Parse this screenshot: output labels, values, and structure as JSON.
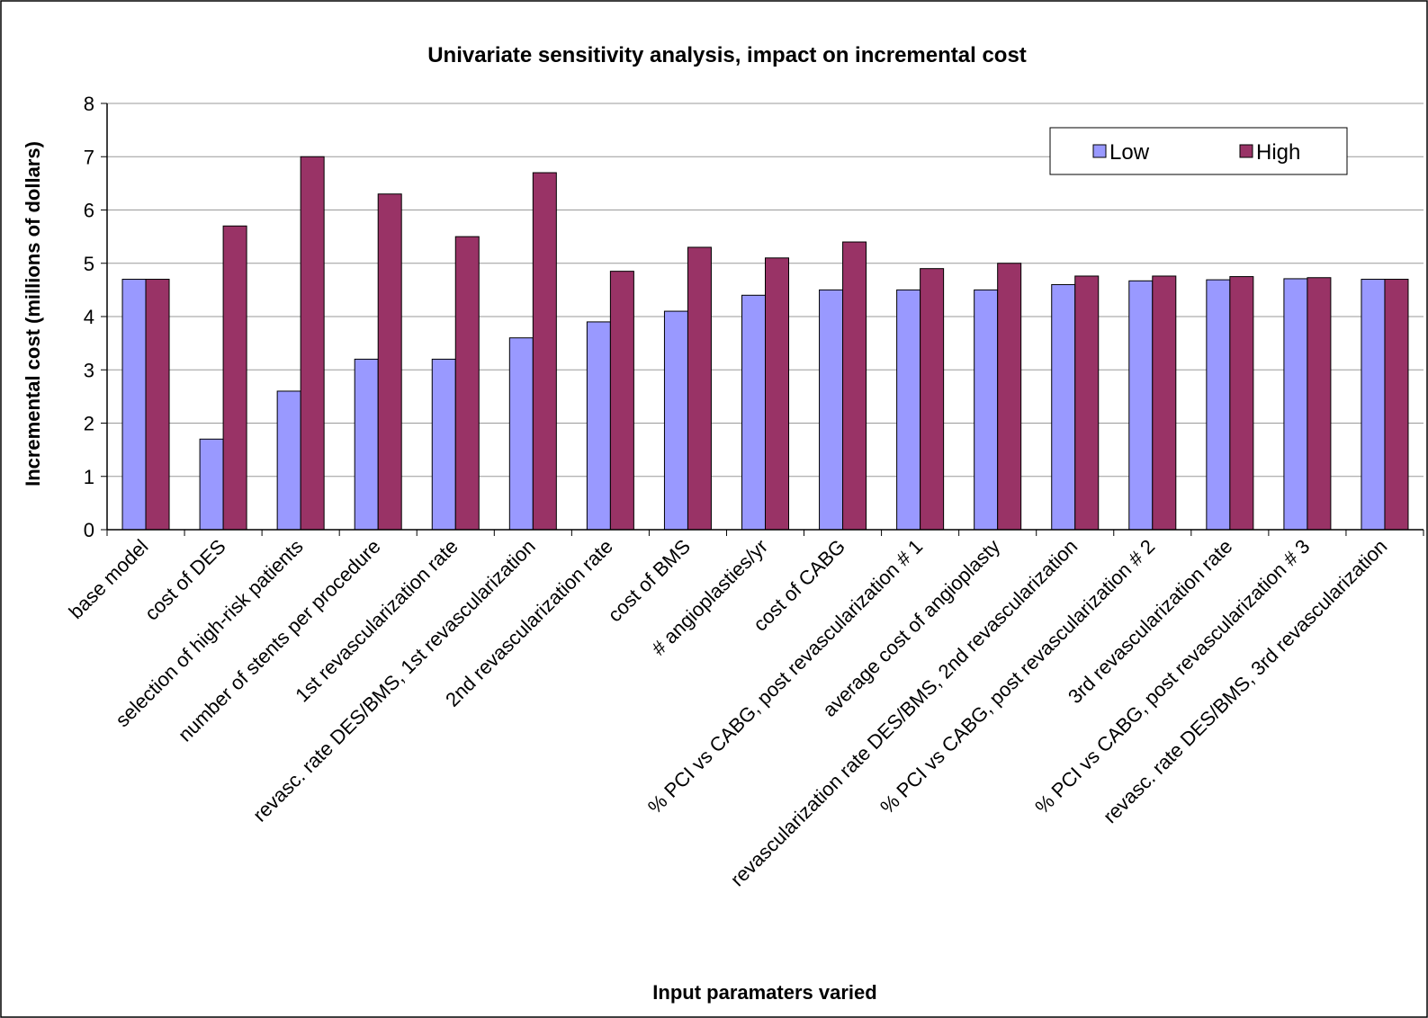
{
  "chart_data": {
    "type": "bar",
    "title": "Univariate sensitivity analysis, impact on incremental cost",
    "xlabel": "Input paramaters varied",
    "ylabel": "Incremental cost (millions of dollars)",
    "ylim": [
      0,
      8
    ],
    "yticks": [
      0,
      1,
      2,
      3,
      4,
      5,
      6,
      7,
      8
    ],
    "grid": "horizontal",
    "legend_position": "top-right",
    "categories": [
      "base model",
      "cost of DES",
      "selection of high-risk patients",
      "number of stents per procedure",
      "1st revascularization rate",
      "revasc. rate DES/BMS, 1st revascularization",
      "2nd revascularization rate",
      "cost of BMS",
      "# angioplasties/yr",
      "cost of CABG",
      "% PCI vs CABG, post revascularization # 1",
      "average cost of angioplasty",
      "revascularization rate DES/BMS, 2nd revascularization",
      "% PCI vs CABG, post revascularization # 2",
      "3rd revascularization rate",
      "% PCI vs CABG, post revascularization # 3",
      "revasc. rate DES/BMS, 3rd revascularization"
    ],
    "series": [
      {
        "name": "Low",
        "color": "#9999ff",
        "values": [
          4.7,
          1.7,
          2.6,
          3.2,
          3.2,
          3.6,
          3.9,
          4.1,
          4.4,
          4.5,
          4.5,
          4.5,
          4.6,
          4.67,
          4.69,
          4.71,
          4.7
        ]
      },
      {
        "name": "High",
        "color": "#993366",
        "values": [
          4.7,
          5.7,
          7.0,
          6.3,
          5.5,
          6.7,
          4.85,
          5.3,
          5.1,
          5.4,
          4.9,
          5.0,
          4.76,
          4.76,
          4.75,
          4.73,
          4.7
        ]
      }
    ]
  }
}
